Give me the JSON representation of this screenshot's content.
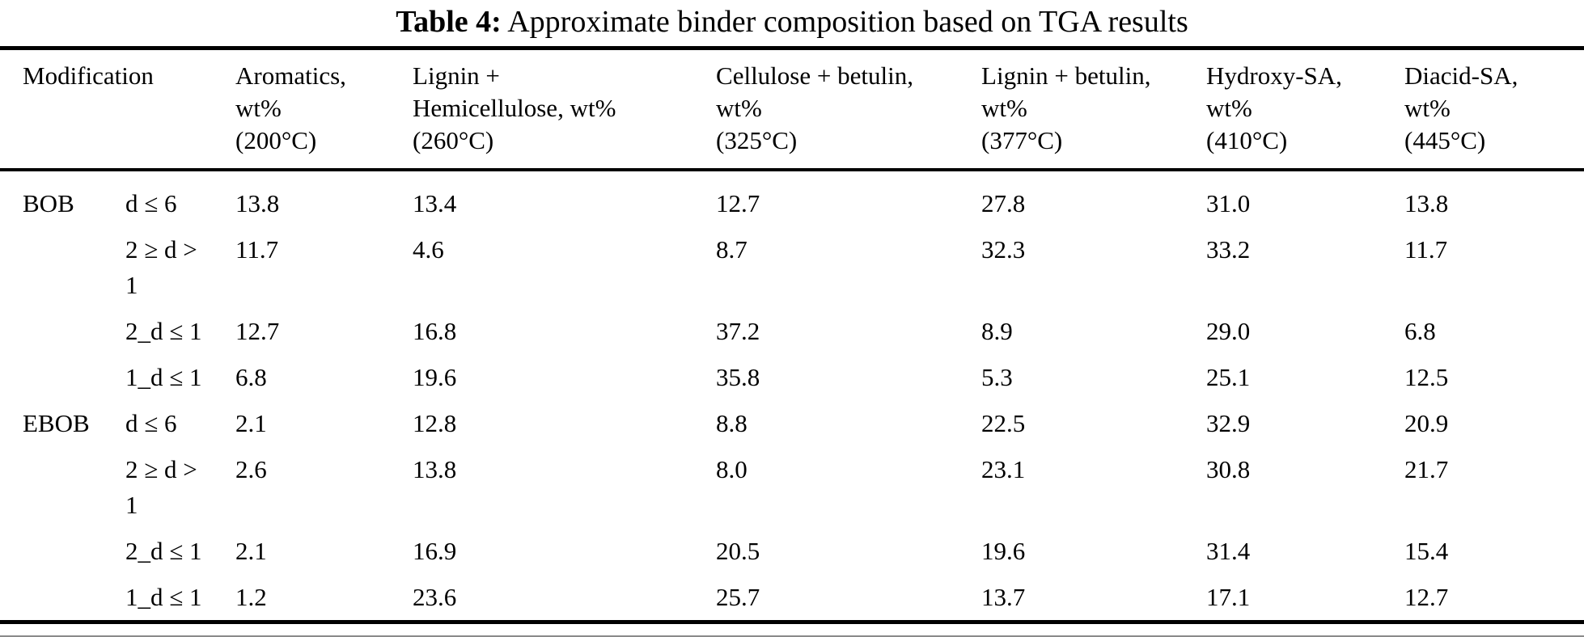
{
  "title": {
    "label": "Table 4:",
    "text": "Approximate binder composition based on TGA results"
  },
  "table": {
    "columns": [
      {
        "name": "Modification",
        "lines": [
          "Modification",
          "",
          ""
        ]
      },
      {
        "name": "Aromatics",
        "lines": [
          "Aromatics,",
          "wt%",
          "(200°C)"
        ]
      },
      {
        "name": "Lignin + Hemicellulose",
        "lines": [
          "Lignin +",
          "Hemicellulose, wt%",
          "(260°C)"
        ]
      },
      {
        "name": "Cellulose + betulin",
        "lines": [
          "Cellulose + betulin,",
          "wt%",
          "(325°C)"
        ]
      },
      {
        "name": "Lignin + betulin",
        "lines": [
          "Lignin + betulin,",
          "wt%",
          "(377°C)"
        ]
      },
      {
        "name": "Hydroxy-SA",
        "lines": [
          "Hydroxy-SA,",
          "wt%",
          "(410°C)"
        ]
      },
      {
        "name": "Diacid-SA",
        "lines": [
          "Diacid-SA,",
          "wt%",
          "(445°C)"
        ]
      }
    ],
    "rows": [
      {
        "group": "BOB",
        "condition": "d ≤ 6",
        "values": [
          "13.8",
          "13.4",
          "12.7",
          "27.8",
          "31.0",
          "13.8"
        ]
      },
      {
        "group": "",
        "condition": "2 ≥ d > 1",
        "values": [
          "11.7",
          "4.6",
          "8.7",
          "32.3",
          "33.2",
          "11.7"
        ]
      },
      {
        "group": "",
        "condition": "2_d ≤ 1",
        "values": [
          "12.7",
          "16.8",
          "37.2",
          "8.9",
          "29.0",
          "6.8"
        ]
      },
      {
        "group": "",
        "condition": "1_d ≤ 1",
        "values": [
          "6.8",
          "19.6",
          "35.8",
          "5.3",
          "25.1",
          "12.5"
        ]
      },
      {
        "group": "EBOB",
        "condition": "d ≤ 6",
        "values": [
          "2.1",
          "12.8",
          "8.8",
          "22.5",
          "32.9",
          "20.9"
        ]
      },
      {
        "group": "",
        "condition": "2 ≥ d > 1",
        "values": [
          "2.6",
          "13.8",
          "8.0",
          "23.1",
          "30.8",
          "21.7"
        ]
      },
      {
        "group": "",
        "condition": "2_d ≤ 1",
        "values": [
          "2.1",
          "16.9",
          "20.5",
          "19.6",
          "31.4",
          "15.4"
        ]
      },
      {
        "group": "",
        "condition": "1_d ≤ 1",
        "values": [
          "1.2",
          "23.6",
          "25.7",
          "13.7",
          "17.1",
          "12.7"
        ]
      }
    ]
  },
  "colors": {
    "text": "#000000",
    "background": "#ffffff",
    "rule": "#000000"
  }
}
